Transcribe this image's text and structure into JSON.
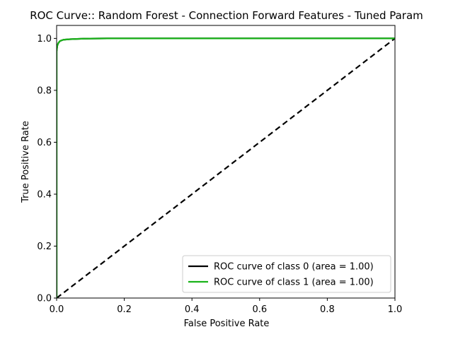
{
  "chart_data": {
    "type": "line",
    "title": "ROC Curve:: Random Forest - Connection Forward Features - Tuned Param",
    "xlabel": "False Positive Rate",
    "ylabel": "True Positive Rate",
    "xlim": [
      0.0,
      1.0
    ],
    "ylim": [
      0.0,
      1.05
    ],
    "grid": false,
    "legend_position": "lower-right",
    "x_ticks": [
      0.0,
      0.2,
      0.4,
      0.6,
      0.8,
      1.0
    ],
    "x_tick_labels": [
      "0.0",
      "0.2",
      "0.4",
      "0.6",
      "0.8",
      "1.0"
    ],
    "y_ticks": [
      0.0,
      0.2,
      0.4,
      0.6,
      0.8,
      1.0
    ],
    "y_tick_labels": [
      "0.0",
      "0.2",
      "0.4",
      "0.6",
      "0.8",
      "1.0"
    ],
    "series": [
      {
        "name": "ROC curve of class 0 (area = 1.00)",
        "color": "#000000",
        "x": [
          0.0,
          0.0,
          0.002,
          0.005,
          0.01,
          0.02,
          0.04,
          0.08,
          0.15,
          1.0
        ],
        "y": [
          0.0,
          0.95,
          0.972,
          0.982,
          0.99,
          0.995,
          0.997,
          0.999,
          1.0,
          1.0
        ]
      },
      {
        "name": "ROC curve of class 1 (area = 1.00)",
        "color": "#1ab31a",
        "x": [
          0.0,
          0.0,
          0.002,
          0.005,
          0.01,
          0.02,
          0.04,
          0.08,
          0.15,
          1.0
        ],
        "y": [
          0.0,
          0.95,
          0.972,
          0.982,
          0.99,
          0.995,
          0.997,
          0.999,
          1.0,
          1.0
        ]
      }
    ],
    "reference_line": {
      "x": [
        0.0,
        1.0
      ],
      "y": [
        0.0,
        1.0
      ],
      "color": "#000000",
      "style": "dashed"
    }
  }
}
